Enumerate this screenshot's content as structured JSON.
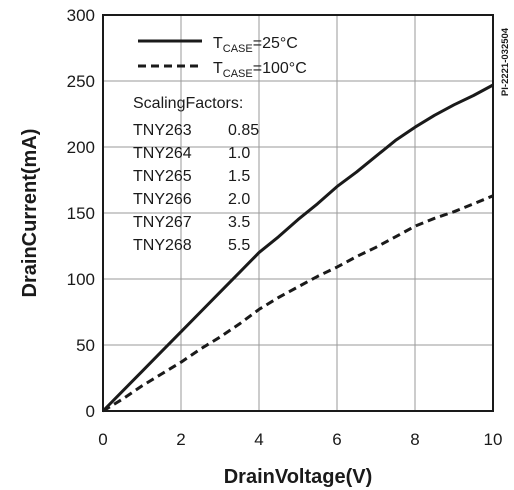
{
  "chart_data": {
    "type": "line",
    "xlabel": "DrainVoltage(V)",
    "ylabel": "DrainCurrent(mA)",
    "xlim": [
      0,
      10
    ],
    "ylim": [
      0,
      300
    ],
    "x_ticks": [
      0,
      2,
      4,
      6,
      8,
      10
    ],
    "y_ticks": [
      0,
      50,
      100,
      150,
      200,
      250,
      300
    ],
    "grid": true,
    "series": [
      {
        "name_main": "T",
        "name_sub": "CASE",
        "name_rest": "=25°C",
        "style": "solid",
        "color": "#1a1a1a",
        "x": [
          0,
          0.5,
          1,
          1.5,
          2,
          2.5,
          3,
          3.5,
          4,
          4.5,
          5,
          5.5,
          6,
          6.5,
          7,
          7.5,
          8,
          8.5,
          9,
          9.5,
          10
        ],
        "y": [
          0,
          15,
          30,
          45,
          60,
          75,
          90,
          105,
          120,
          132,
          145,
          157,
          170,
          181,
          193,
          205,
          215,
          224,
          232,
          239,
          247
        ]
      },
      {
        "name_main": "T",
        "name_sub": "CASE",
        "name_rest": "=100°C",
        "style": "dashed",
        "color": "#1a1a1a",
        "x": [
          0,
          0.5,
          1,
          1.5,
          2,
          2.5,
          3,
          3.5,
          4,
          4.5,
          5,
          5.5,
          6,
          6.5,
          7,
          7.5,
          8,
          8.5,
          9,
          9.5,
          10
        ],
        "y": [
          0,
          9,
          19,
          28,
          37,
          47,
          56,
          66,
          77,
          86,
          94,
          102,
          109,
          117,
          124,
          132,
          140,
          146,
          151,
          157,
          163
        ]
      }
    ],
    "annotation": {
      "heading": "ScalingFactors:",
      "rows": [
        {
          "part": "TNY263",
          "factor": "0.85"
        },
        {
          "part": "TNY264",
          "factor": "1.0"
        },
        {
          "part": "TNY265",
          "factor": "1.5"
        },
        {
          "part": "TNY266",
          "factor": "2.0"
        },
        {
          "part": "TNY267",
          "factor": "3.5"
        },
        {
          "part": "TNY268",
          "factor": "5.5"
        }
      ]
    },
    "figure_id": "PI-2221-032504",
    "legend_position": "top-left"
  }
}
